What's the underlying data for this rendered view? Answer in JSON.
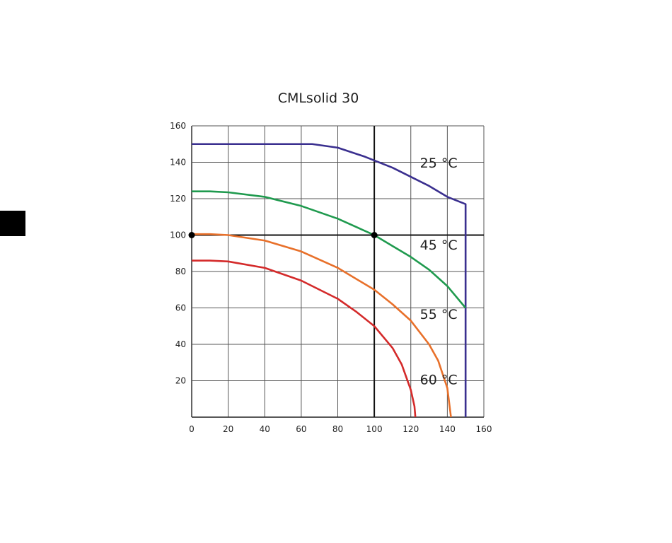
{
  "colors": {
    "background": "#ffffff",
    "grid": "#555555",
    "axis": "#222222",
    "side_block": "#000000"
  },
  "chart_data": {
    "type": "line",
    "title": "CMLsolid 30",
    "xlabel": "",
    "ylabel": "",
    "xlim": [
      0,
      160
    ],
    "ylim": [
      0,
      160
    ],
    "xticks": [
      "0",
      "20",
      "40",
      "60",
      "80",
      "100",
      "120",
      "140",
      "160"
    ],
    "yticks": [
      "20",
      "40",
      "60",
      "80",
      "100",
      "120",
      "140",
      "160"
    ],
    "grid": true,
    "series": [
      {
        "name": "25 °C",
        "color": "#3a2f8f",
        "x": [
          0,
          66,
          80,
          95,
          100,
          110,
          120,
          130,
          140,
          150,
          150
        ],
        "y": [
          150,
          150,
          148,
          143,
          141,
          137,
          132,
          127,
          121,
          117,
          0
        ]
      },
      {
        "name": "45 °C",
        "color": "#1f9a4e",
        "x": [
          0,
          10,
          20,
          40,
          60,
          80,
          100,
          110,
          120,
          130,
          140,
          150
        ],
        "y": [
          124,
          124,
          123.5,
          121,
          116,
          109,
          100,
          94,
          88,
          81,
          72,
          60
        ]
      },
      {
        "name": "55 °C",
        "color": "#e8702a",
        "x": [
          0,
          10,
          20,
          40,
          60,
          80,
          100,
          110,
          120,
          130,
          135,
          140,
          142
        ],
        "y": [
          100.5,
          100.5,
          100,
          97,
          91,
          82,
          70,
          62,
          53,
          40,
          31,
          16,
          0
        ]
      },
      {
        "name": "60 °C",
        "color": "#d42a2a",
        "x": [
          0,
          10,
          20,
          40,
          60,
          80,
          90,
          100,
          110,
          115,
          120,
          122,
          122.5
        ],
        "y": [
          86,
          86,
          85.5,
          82,
          75,
          65,
          58,
          50,
          38,
          29,
          15,
          6,
          0
        ]
      }
    ],
    "labels": [
      {
        "text": "25 °C",
        "x": 125,
        "y": 137
      },
      {
        "text": "45 °C",
        "x": 125,
        "y": 92
      },
      {
        "text": "55 °C",
        "x": 125,
        "y": 54
      },
      {
        "text": "60 °C",
        "x": 125,
        "y": 18
      }
    ],
    "reference_lines": {
      "x": 100,
      "y": 100
    },
    "points": [
      {
        "x": 0,
        "y": 100
      },
      {
        "x": 100,
        "y": 100
      }
    ]
  }
}
